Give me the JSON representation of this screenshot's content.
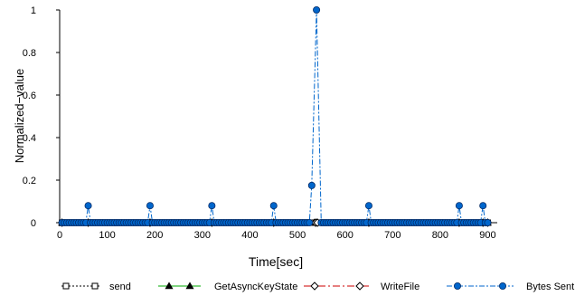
{
  "chart_data": {
    "type": "line",
    "xlabel": "Time[sec]",
    "ylabel": "Normalized−value",
    "xlim": [
      0,
      920
    ],
    "ylim": [
      0,
      1
    ],
    "xticks": [
      0,
      100,
      200,
      300,
      400,
      500,
      600,
      700,
      800,
      900
    ],
    "yticks": [
      0,
      0.2,
      0.4,
      0.6,
      0.8,
      1
    ],
    "ytick_labels": [
      "0",
      "0.2",
      "0.4",
      "0.6",
      "0.8",
      "1"
    ],
    "legend_position": "bottom",
    "series": [
      {
        "name": "send",
        "color": "#000000",
        "marker": "square-open",
        "dash": "2,2",
        "points": [
          [
            5,
            0
          ],
          [
            60,
            0
          ],
          [
            190,
            0
          ],
          [
            320,
            0
          ],
          [
            450,
            0
          ],
          [
            530,
            0
          ],
          [
            540,
            0
          ],
          [
            650,
            0
          ],
          [
            840,
            0
          ],
          [
            890,
            0
          ],
          [
            900,
            0
          ]
        ]
      },
      {
        "name": "GetAsyncKeyState",
        "color": "#00aa00",
        "marker": "triangle-filled",
        "dash": "",
        "points": [
          [
            5,
            0
          ],
          [
            60,
            0
          ],
          [
            190,
            0
          ],
          [
            320,
            0
          ],
          [
            450,
            0
          ],
          [
            535,
            0
          ],
          [
            540,
            0
          ],
          [
            650,
            0
          ],
          [
            840,
            0
          ],
          [
            890,
            0
          ],
          [
            900,
            0
          ]
        ]
      },
      {
        "name": "WriteFile",
        "color": "#cc0000",
        "marker": "diamond-open",
        "dash": "8,3,2,3",
        "points": [
          [
            5,
            0
          ],
          [
            60,
            0
          ],
          [
            190,
            0
          ],
          [
            320,
            0
          ],
          [
            450,
            0
          ],
          [
            538,
            0
          ],
          [
            542,
            0
          ],
          [
            650,
            0
          ],
          [
            840,
            0
          ],
          [
            890,
            0
          ],
          [
            900,
            0
          ]
        ]
      },
      {
        "name": "Bytes Sent",
        "color": "#0066cc",
        "marker": "circle-filled",
        "dash": "6,2,2,2",
        "points": [
          [
            5,
            0
          ],
          [
            10,
            0
          ],
          [
            15,
            0
          ],
          [
            20,
            0
          ],
          [
            25,
            0
          ],
          [
            30,
            0
          ],
          [
            35,
            0
          ],
          [
            40,
            0
          ],
          [
            45,
            0
          ],
          [
            50,
            0
          ],
          [
            55,
            0
          ],
          [
            60,
            0.08
          ],
          [
            65,
            0
          ],
          [
            70,
            0
          ],
          [
            75,
            0
          ],
          [
            80,
            0
          ],
          [
            85,
            0
          ],
          [
            90,
            0
          ],
          [
            95,
            0
          ],
          [
            100,
            0
          ],
          [
            105,
            0
          ],
          [
            110,
            0
          ],
          [
            115,
            0
          ],
          [
            120,
            0
          ],
          [
            125,
            0
          ],
          [
            130,
            0
          ],
          [
            135,
            0
          ],
          [
            140,
            0
          ],
          [
            145,
            0
          ],
          [
            150,
            0
          ],
          [
            155,
            0
          ],
          [
            160,
            0
          ],
          [
            165,
            0
          ],
          [
            170,
            0
          ],
          [
            175,
            0
          ],
          [
            180,
            0
          ],
          [
            185,
            0
          ],
          [
            190,
            0.08
          ],
          [
            195,
            0
          ],
          [
            200,
            0
          ],
          [
            205,
            0
          ],
          [
            210,
            0
          ],
          [
            215,
            0
          ],
          [
            220,
            0
          ],
          [
            225,
            0
          ],
          [
            230,
            0
          ],
          [
            235,
            0
          ],
          [
            240,
            0
          ],
          [
            245,
            0
          ],
          [
            250,
            0
          ],
          [
            255,
            0
          ],
          [
            260,
            0
          ],
          [
            265,
            0
          ],
          [
            270,
            0
          ],
          [
            275,
            0
          ],
          [
            280,
            0
          ],
          [
            285,
            0
          ],
          [
            290,
            0
          ],
          [
            295,
            0
          ],
          [
            300,
            0
          ],
          [
            305,
            0
          ],
          [
            310,
            0
          ],
          [
            315,
            0
          ],
          [
            320,
            0.08
          ],
          [
            325,
            0
          ],
          [
            330,
            0
          ],
          [
            335,
            0
          ],
          [
            340,
            0
          ],
          [
            345,
            0
          ],
          [
            350,
            0
          ],
          [
            355,
            0
          ],
          [
            360,
            0
          ],
          [
            365,
            0
          ],
          [
            370,
            0
          ],
          [
            375,
            0
          ],
          [
            380,
            0
          ],
          [
            385,
            0
          ],
          [
            390,
            0
          ],
          [
            395,
            0
          ],
          [
            400,
            0
          ],
          [
            405,
            0
          ],
          [
            410,
            0
          ],
          [
            415,
            0
          ],
          [
            420,
            0
          ],
          [
            425,
            0
          ],
          [
            430,
            0
          ],
          [
            435,
            0
          ],
          [
            440,
            0
          ],
          [
            445,
            0
          ],
          [
            450,
            0.08
          ],
          [
            455,
            0
          ],
          [
            460,
            0
          ],
          [
            465,
            0
          ],
          [
            470,
            0
          ],
          [
            475,
            0
          ],
          [
            480,
            0
          ],
          [
            485,
            0
          ],
          [
            490,
            0
          ],
          [
            495,
            0
          ],
          [
            500,
            0
          ],
          [
            505,
            0
          ],
          [
            510,
            0
          ],
          [
            515,
            0
          ],
          [
            520,
            0
          ],
          [
            525,
            0
          ],
          [
            530,
            0.175
          ],
          [
            540,
            1.0
          ],
          [
            550,
            0
          ],
          [
            555,
            0
          ],
          [
            560,
            0
          ],
          [
            565,
            0
          ],
          [
            570,
            0
          ],
          [
            575,
            0
          ],
          [
            580,
            0
          ],
          [
            585,
            0
          ],
          [
            590,
            0
          ],
          [
            595,
            0
          ],
          [
            600,
            0
          ],
          [
            605,
            0
          ],
          [
            610,
            0
          ],
          [
            615,
            0
          ],
          [
            620,
            0
          ],
          [
            625,
            0
          ],
          [
            630,
            0
          ],
          [
            635,
            0
          ],
          [
            640,
            0
          ],
          [
            645,
            0
          ],
          [
            650,
            0.08
          ],
          [
            655,
            0
          ],
          [
            660,
            0
          ],
          [
            665,
            0
          ],
          [
            670,
            0
          ],
          [
            675,
            0
          ],
          [
            680,
            0
          ],
          [
            685,
            0
          ],
          [
            690,
            0
          ],
          [
            695,
            0
          ],
          [
            700,
            0
          ],
          [
            705,
            0
          ],
          [
            710,
            0
          ],
          [
            715,
            0
          ],
          [
            720,
            0
          ],
          [
            725,
            0
          ],
          [
            730,
            0
          ],
          [
            735,
            0
          ],
          [
            740,
            0
          ],
          [
            745,
            0
          ],
          [
            750,
            0
          ],
          [
            755,
            0
          ],
          [
            760,
            0
          ],
          [
            765,
            0
          ],
          [
            770,
            0
          ],
          [
            775,
            0
          ],
          [
            780,
            0
          ],
          [
            785,
            0
          ],
          [
            790,
            0
          ],
          [
            795,
            0
          ],
          [
            800,
            0
          ],
          [
            805,
            0
          ],
          [
            810,
            0
          ],
          [
            815,
            0
          ],
          [
            820,
            0
          ],
          [
            825,
            0
          ],
          [
            830,
            0
          ],
          [
            835,
            0
          ],
          [
            840,
            0.08
          ],
          [
            845,
            0
          ],
          [
            850,
            0
          ],
          [
            855,
            0
          ],
          [
            860,
            0
          ],
          [
            865,
            0
          ],
          [
            870,
            0
          ],
          [
            875,
            0
          ],
          [
            880,
            0
          ],
          [
            885,
            0
          ],
          [
            890,
            0.08
          ],
          [
            895,
            0
          ],
          [
            900,
            0
          ]
        ]
      }
    ]
  }
}
